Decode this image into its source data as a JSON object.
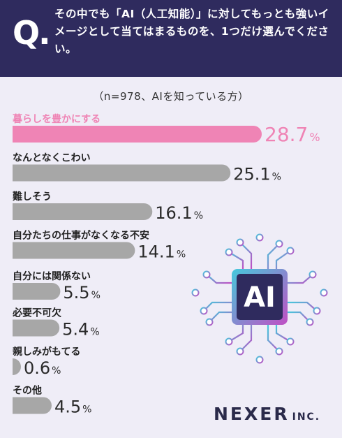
{
  "header": {
    "q_mark": "Q",
    "question": "その中でも「AI（人工知能）」に対してもっとも強いイメージとして当てはまるものを、1つだけ選んでください。"
  },
  "subtitle": "（n=978、AIを知っている方）",
  "brand": {
    "name": "NEXER",
    "suffix": "INC."
  },
  "illustration_text": "AI",
  "colors": {
    "highlight": "#ef84b5",
    "bar": "#a7a7a7",
    "header_bg": "#2f2b5e",
    "background": "#efedf7"
  },
  "chart_data": {
    "type": "bar",
    "orientation": "horizontal",
    "unit": "%",
    "xlim": [
      0,
      28.7
    ],
    "categories": [
      "暮らしを豊かにする",
      "なんとなくこわい",
      "難しそう",
      "自分たちの仕事がなくなる不安",
      "自分には関係ない",
      "必要不可欠",
      "親しみがもてる",
      "その他"
    ],
    "values": [
      28.7,
      25.1,
      16.1,
      14.1,
      5.5,
      5.4,
      0.6,
      4.5
    ],
    "value_labels": [
      "28.7",
      "25.1",
      "16.1",
      "14.1",
      "5.5",
      "5.4",
      "0.6",
      "4.5"
    ],
    "highlight_index": 0
  }
}
